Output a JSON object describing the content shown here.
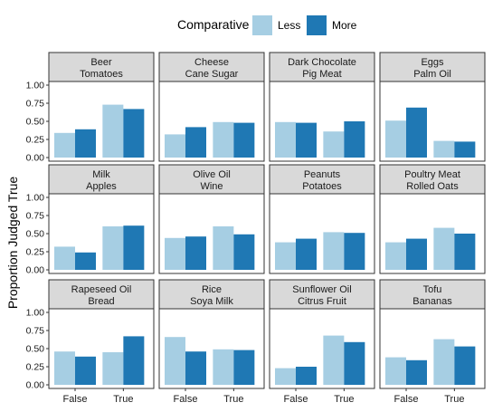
{
  "chart_data": {
    "type": "bar",
    "layout": "faceted 3x4 grid",
    "legend": {
      "title": "Comparative",
      "placement": "top",
      "items": [
        {
          "label": "Less",
          "color": "#a6cee3"
        },
        {
          "label": "More",
          "color": "#1f78b4"
        }
      ]
    },
    "ylabel": "Proportion Judged True",
    "xlabel": "",
    "categories": [
      "False",
      "True"
    ],
    "ylim": [
      0,
      1
    ],
    "yticks": [
      "0.00",
      "0.25",
      "0.50",
      "0.75",
      "1.00"
    ],
    "grid": false,
    "facets": [
      {
        "title_line1": "Beer",
        "title_line2": "Tomatoes",
        "series": [
          {
            "name": "Less",
            "values": [
              0.34,
              0.73
            ]
          },
          {
            "name": "More",
            "values": [
              0.39,
              0.67
            ]
          }
        ]
      },
      {
        "title_line1": "Cheese",
        "title_line2": "Cane Sugar",
        "series": [
          {
            "name": "Less",
            "values": [
              0.32,
              0.49
            ]
          },
          {
            "name": "More",
            "values": [
              0.42,
              0.48
            ]
          }
        ]
      },
      {
        "title_line1": "Dark Chocolate",
        "title_line2": "Pig Meat",
        "series": [
          {
            "name": "Less",
            "values": [
              0.49,
              0.36
            ]
          },
          {
            "name": "More",
            "values": [
              0.48,
              0.5
            ]
          }
        ]
      },
      {
        "title_line1": "Eggs",
        "title_line2": "Palm Oil",
        "series": [
          {
            "name": "Less",
            "values": [
              0.51,
              0.23
            ]
          },
          {
            "name": "More",
            "values": [
              0.69,
              0.22
            ]
          }
        ]
      },
      {
        "title_line1": "Milk",
        "title_line2": "Apples",
        "series": [
          {
            "name": "Less",
            "values": [
              0.32,
              0.6
            ]
          },
          {
            "name": "More",
            "values": [
              0.24,
              0.61
            ]
          }
        ]
      },
      {
        "title_line1": "Olive Oil",
        "title_line2": "Wine",
        "series": [
          {
            "name": "Less",
            "values": [
              0.44,
              0.6
            ]
          },
          {
            "name": "More",
            "values": [
              0.46,
              0.49
            ]
          }
        ]
      },
      {
        "title_line1": "Peanuts",
        "title_line2": "Potatoes",
        "series": [
          {
            "name": "Less",
            "values": [
              0.38,
              0.52
            ]
          },
          {
            "name": "More",
            "values": [
              0.43,
              0.51
            ]
          }
        ]
      },
      {
        "title_line1": "Poultry Meat",
        "title_line2": "Rolled Oats",
        "series": [
          {
            "name": "Less",
            "values": [
              0.38,
              0.58
            ]
          },
          {
            "name": "More",
            "values": [
              0.43,
              0.5
            ]
          }
        ]
      },
      {
        "title_line1": "Rapeseed Oil",
        "title_line2": "Bread",
        "series": [
          {
            "name": "Less",
            "values": [
              0.46,
              0.45
            ]
          },
          {
            "name": "More",
            "values": [
              0.39,
              0.67
            ]
          }
        ]
      },
      {
        "title_line1": "Rice",
        "title_line2": "Soya Milk",
        "series": [
          {
            "name": "Less",
            "values": [
              0.66,
              0.49
            ]
          },
          {
            "name": "More",
            "values": [
              0.46,
              0.48
            ]
          }
        ]
      },
      {
        "title_line1": "Sunflower Oil",
        "title_line2": "Citrus Fruit",
        "series": [
          {
            "name": "Less",
            "values": [
              0.23,
              0.68
            ]
          },
          {
            "name": "More",
            "values": [
              0.25,
              0.59
            ]
          }
        ]
      },
      {
        "title_line1": "Tofu",
        "title_line2": "Bananas",
        "series": [
          {
            "name": "Less",
            "values": [
              0.38,
              0.63
            ]
          },
          {
            "name": "More",
            "values": [
              0.34,
              0.53
            ]
          }
        ]
      }
    ]
  }
}
